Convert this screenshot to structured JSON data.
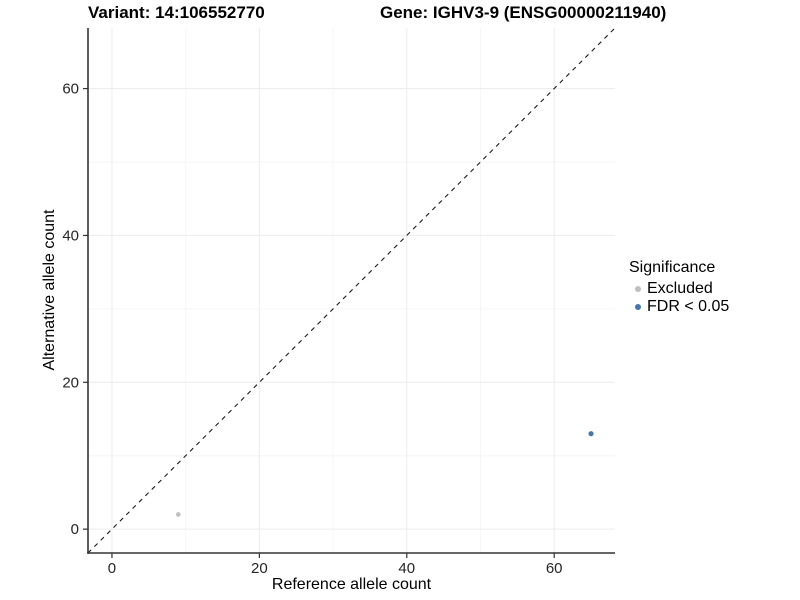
{
  "chart_data": {
    "type": "scatter",
    "title_left": "Variant: 14:106552770",
    "title_right": "Gene: IGHV3-9 (ENSG00000211940)",
    "xlabel": "Reference allele count",
    "ylabel": "Alternative allele count",
    "xlim": [
      -3.25,
      68.25
    ],
    "ylim": [
      -3.25,
      68.25
    ],
    "x_ticks": [
      0,
      20,
      40,
      60
    ],
    "y_ticks": [
      0,
      20,
      40,
      60
    ],
    "grid": {
      "minor": [
        10,
        30,
        50
      ],
      "major_from_ticks": true
    },
    "identity_line": {
      "equation": "y = x",
      "style": "dashed",
      "color": "#1a1a1a"
    },
    "points": [
      {
        "x": 9,
        "y": 2,
        "significance": "Excluded",
        "color": "#bfbfbf",
        "r": 2.3
      },
      {
        "x": 65,
        "y": 13,
        "significance": "FDR < 0.05",
        "color": "#4677a8",
        "r": 2.6
      }
    ],
    "legend": {
      "title": "Significance",
      "position": "right",
      "entries": [
        {
          "label": "Excluded",
          "color": "#bfbfbf"
        },
        {
          "label": "FDR < 0.05",
          "color": "#4677a8"
        }
      ]
    },
    "colors": {
      "background": "#ffffff",
      "grid_major": "#ececec",
      "grid_minor": "#f6f6f6",
      "axis": "#333333",
      "tick_text": "#262626"
    }
  }
}
